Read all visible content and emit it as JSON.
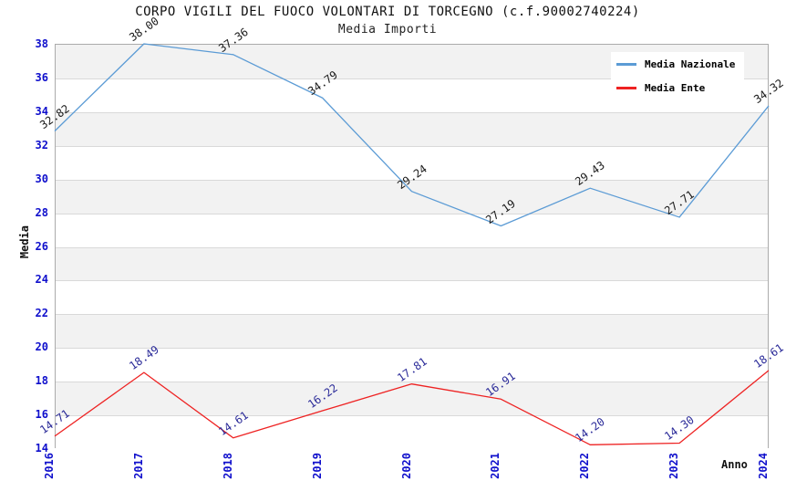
{
  "chart_data": {
    "type": "line",
    "title": "CORPO VIGILI DEL FUOCO VOLONTARI DI TORCEGNO (c.f.90002740224)",
    "subtitle": "Media Importi",
    "xlabel": "Anno",
    "ylabel": "Media",
    "categories": [
      "2016",
      "2017",
      "2018",
      "2019",
      "2020",
      "2021",
      "2022",
      "2023",
      "2024"
    ],
    "series": [
      {
        "name": "Media Nazionale",
        "color": "#5b9bd5",
        "label_color": "#1a1a1a",
        "values": [
          32.82,
          38.0,
          37.36,
          34.79,
          29.24,
          27.19,
          29.43,
          27.71,
          34.32
        ],
        "labels": [
          "32.82",
          "38.00",
          "37.36",
          "34.79",
          "29.24",
          "27.19",
          "29.43",
          "27.71",
          "34.32"
        ]
      },
      {
        "name": "Media Ente",
        "color": "#ee2222",
        "label_color": "#2b2b99",
        "values": [
          14.71,
          18.49,
          14.61,
          16.22,
          17.81,
          16.91,
          14.2,
          14.3,
          18.61
        ],
        "labels": [
          "14.71",
          "18.49",
          "14.61",
          "16.22",
          "17.81",
          "16.91",
          "14.20",
          "14.30",
          "18.61"
        ]
      }
    ],
    "ylim": [
      14,
      38
    ],
    "ytick_step": 2,
    "grid": true,
    "band_colors": [
      "#f2f2f2",
      "#ffffff"
    ],
    "tick_label_color": "#0f0fcc",
    "legend_position": "top-right"
  }
}
